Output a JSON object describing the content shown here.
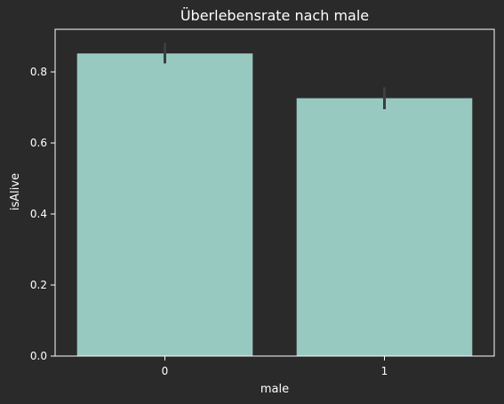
{
  "chart_data": {
    "type": "bar",
    "title": "Überlebensrate nach male",
    "xlabel": "male",
    "ylabel": "isAlive",
    "categories": [
      "0",
      "1"
    ],
    "values": [
      0.852,
      0.726
    ],
    "error_low": [
      0.824,
      0.695
    ],
    "error_high": [
      0.882,
      0.757
    ],
    "yticks": [
      0.0,
      0.2,
      0.4,
      0.6,
      0.8
    ],
    "ytick_labels": [
      "0.0",
      "0.2",
      "0.4",
      "0.6",
      "0.8"
    ],
    "ylim": [
      0,
      0.92
    ],
    "grid": false,
    "colors": {
      "background": "#2b2a2b",
      "bar": "#97c9c1",
      "axis": "#ffffff",
      "text": "#ffffff",
      "errorbar": "#3d3d3d"
    }
  }
}
